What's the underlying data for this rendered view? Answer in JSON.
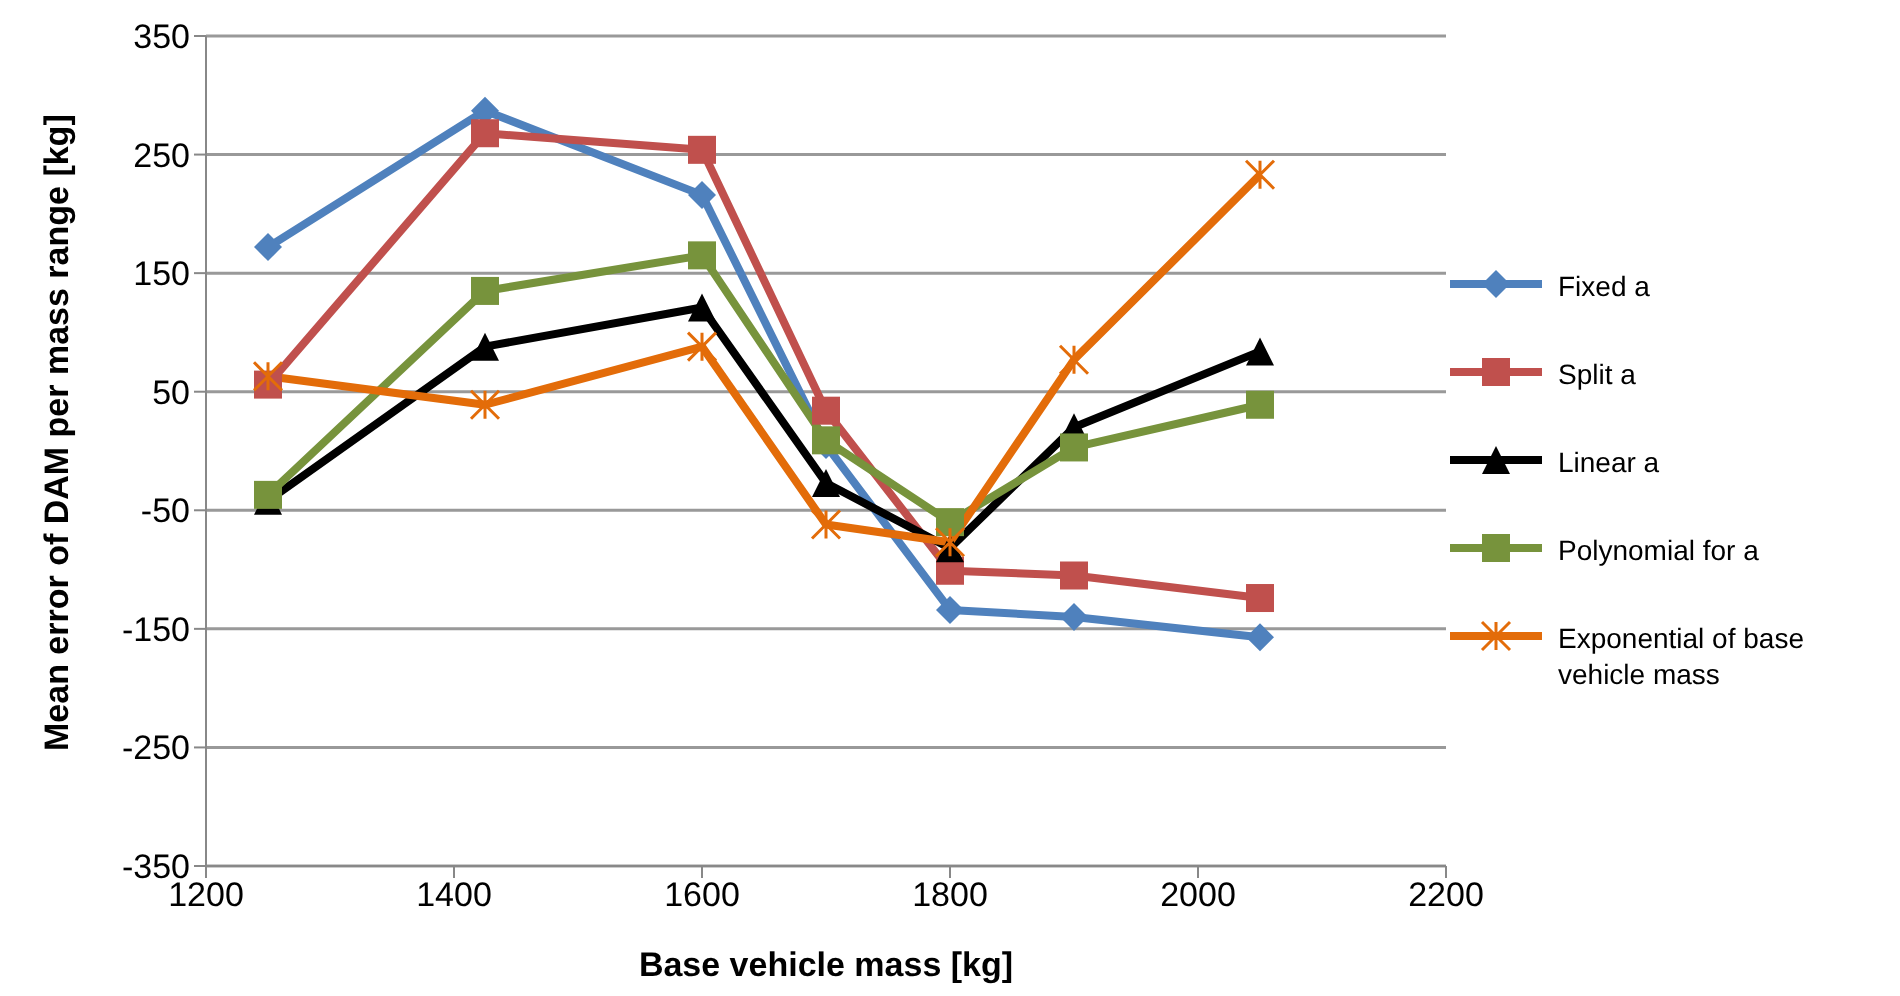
{
  "chart_data": {
    "type": "line",
    "xlabel": "Base vehicle mass [kg]",
    "ylabel": "Mean error of DAM per mass range [kg]",
    "x": [
      1250,
      1425,
      1600,
      1700,
      1800,
      1900,
      2050
    ],
    "series": [
      {
        "name": "Fixed a",
        "color": "#4f81bd",
        "marker": "diamond",
        "values": [
          172,
          287,
          216,
          5,
          -134,
          -140,
          -157
        ]
      },
      {
        "name": "Split a",
        "color": "#c0504d",
        "marker": "square",
        "values": [
          56,
          268,
          254,
          34,
          -101,
          -105,
          -124
        ]
      },
      {
        "name": "Linear a",
        "color": "#000000",
        "marker": "triangle",
        "values": [
          -42,
          88,
          121,
          -27,
          -82,
          20,
          84
        ]
      },
      {
        "name": "Polynomial for a",
        "color": "#77933c",
        "marker": "square",
        "values": [
          -37,
          135,
          165,
          9,
          -60,
          3,
          39
        ]
      },
      {
        "name": "Exponential of base vehicle mass",
        "color": "#e36c09",
        "marker": "cross",
        "values": [
          63,
          39,
          88,
          -62,
          -77,
          77,
          233
        ]
      }
    ],
    "xlim": [
      1200,
      2200
    ],
    "xticks": [
      1200,
      1400,
      1600,
      1800,
      2000,
      2200
    ],
    "ylim": [
      -350,
      350
    ],
    "yticks": [
      -350,
      -250,
      -150,
      -50,
      50,
      150,
      250,
      350
    ],
    "grid": "y",
    "legend": "right"
  }
}
